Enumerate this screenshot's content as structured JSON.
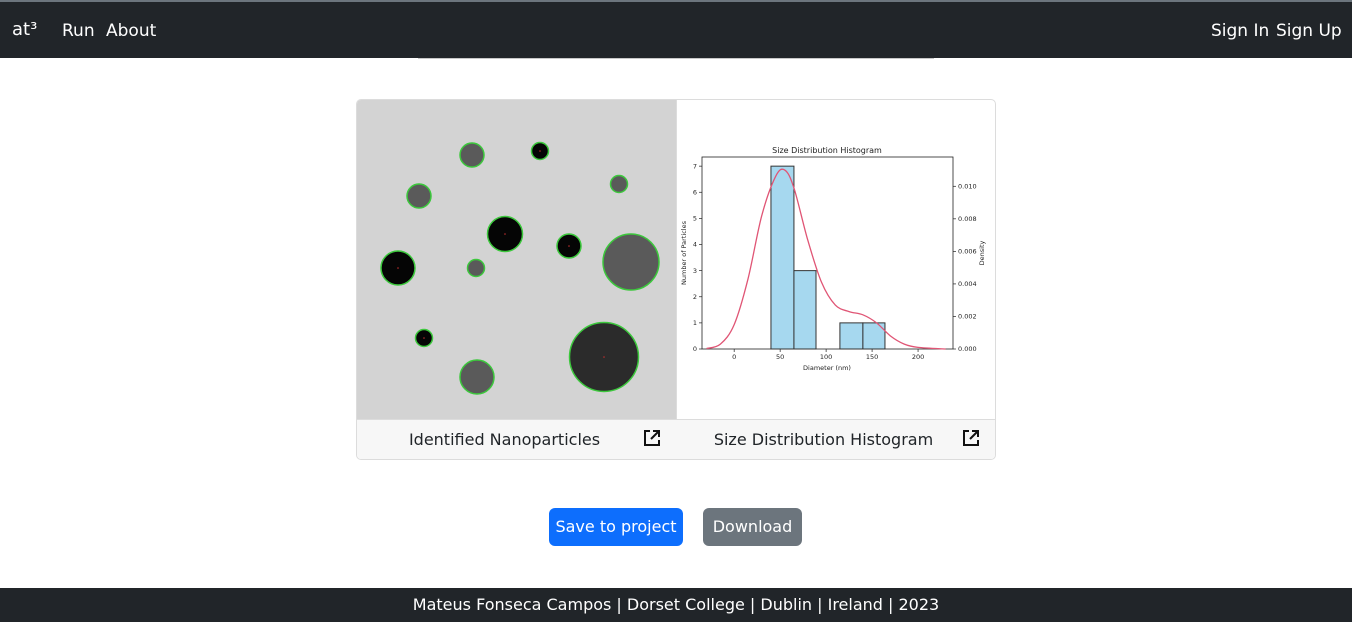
{
  "navbar": {
    "brand": "at³",
    "links": [
      "Run",
      "About"
    ],
    "auth": [
      "Sign In",
      "Sign Up"
    ]
  },
  "results": {
    "left_caption": "Identified Nanoparticles",
    "right_caption": "Size Distribution Histogram"
  },
  "chart_data": {
    "type": "bar",
    "title": "Size Distribution Histogram",
    "xlabel": "Diameter (nm)",
    "ylabel": "Number of Particles",
    "y2label": "Density",
    "xlim": [
      -35,
      238
    ],
    "ylim": [
      0,
      7.35
    ],
    "y2lim": [
      0,
      0.0118
    ],
    "xticks": [
      0,
      50,
      100,
      150,
      200
    ],
    "yticks": [
      0,
      1,
      2,
      3,
      4,
      5,
      6,
      7
    ],
    "y2ticks": [
      "0.000",
      "0.002",
      "0.004",
      "0.006",
      "0.008",
      "0.010"
    ],
    "bins": [
      {
        "x0": 40,
        "x1": 65,
        "count": 7
      },
      {
        "x0": 65,
        "x1": 89,
        "count": 3
      },
      {
        "x0": 115,
        "x1": 140,
        "count": 1
      },
      {
        "x0": 140,
        "x1": 164,
        "count": 1
      }
    ],
    "kde": [
      [
        -30,
        3e-05
      ],
      [
        -15,
        0.0003
      ],
      [
        0,
        0.0015
      ],
      [
        15,
        0.0043
      ],
      [
        30,
        0.0082
      ],
      [
        45,
        0.0106
      ],
      [
        55,
        0.011
      ],
      [
        65,
        0.0099
      ],
      [
        80,
        0.0067
      ],
      [
        95,
        0.0041
      ],
      [
        110,
        0.0027
      ],
      [
        125,
        0.0023
      ],
      [
        140,
        0.0021
      ],
      [
        155,
        0.0016
      ],
      [
        170,
        0.0008
      ],
      [
        185,
        0.0003
      ],
      [
        200,
        0.0001
      ],
      [
        230,
        0.0
      ]
    ],
    "colors": {
      "bar": "#a6d8ef",
      "edge": "#333333",
      "kde": "#e05575"
    }
  },
  "actions": {
    "save": "Save to project",
    "download": "Download"
  },
  "footer": {
    "text": "Mateus Fonseca Campos | Dorset College | Dublin | Ireland | 2023"
  }
}
